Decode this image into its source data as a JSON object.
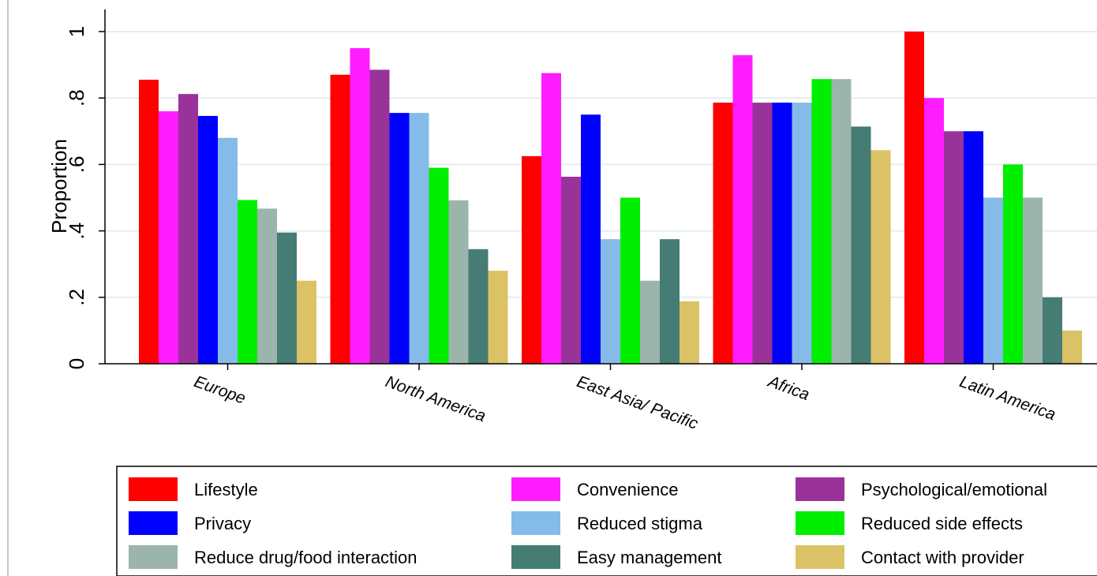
{
  "chart_data": {
    "type": "bar",
    "ylabel": "Proportion",
    "xlabel": "",
    "ylim": [
      0,
      1.03
    ],
    "y_ticks": [
      {
        "value": 0,
        "label": "0"
      },
      {
        "value": 0.2,
        "label": ".2"
      },
      {
        "value": 0.4,
        "label": ".4"
      },
      {
        "value": 0.6,
        "label": ".6"
      },
      {
        "value": 0.8,
        "label": ".8"
      },
      {
        "value": 1.0,
        "label": "1"
      }
    ],
    "grid": true,
    "legend_position": "bottom",
    "categories": [
      "Europe",
      "North America",
      "East Asia/ Pacific",
      "Africa",
      "Latin America"
    ],
    "series": [
      {
        "name": "Lifestyle",
        "color": "#ff0000",
        "values": [
          0.855,
          0.87,
          0.625,
          0.786,
          1.0
        ]
      },
      {
        "name": "Convenience",
        "color": "#ff1dff",
        "values": [
          0.76,
          0.95,
          0.875,
          0.929,
          0.8
        ]
      },
      {
        "name": "Psychological/emotional",
        "color": "#993399",
        "values": [
          0.812,
          0.885,
          0.563,
          0.786,
          0.7
        ]
      },
      {
        "name": "Privacy",
        "color": "#0000ff",
        "values": [
          0.746,
          0.755,
          0.75,
          0.786,
          0.7
        ]
      },
      {
        "name": "Reduced stigma",
        "color": "#84bbe8",
        "values": [
          0.68,
          0.755,
          0.375,
          0.786,
          0.5
        ]
      },
      {
        "name": "Reduced side effects",
        "color": "#00ee00",
        "values": [
          0.493,
          0.59,
          0.5,
          0.857,
          0.6
        ]
      },
      {
        "name": "Reduce drug/food interaction",
        "color": "#9bb5ad",
        "values": [
          0.467,
          0.492,
          0.25,
          0.857,
          0.5
        ]
      },
      {
        "name": "Easy management",
        "color": "#457c74",
        "values": [
          0.395,
          0.345,
          0.375,
          0.714,
          0.2
        ]
      },
      {
        "name": "Contact with provider",
        "color": "#dcc267",
        "values": [
          0.25,
          0.28,
          0.188,
          0.643,
          0.1
        ]
      }
    ]
  }
}
